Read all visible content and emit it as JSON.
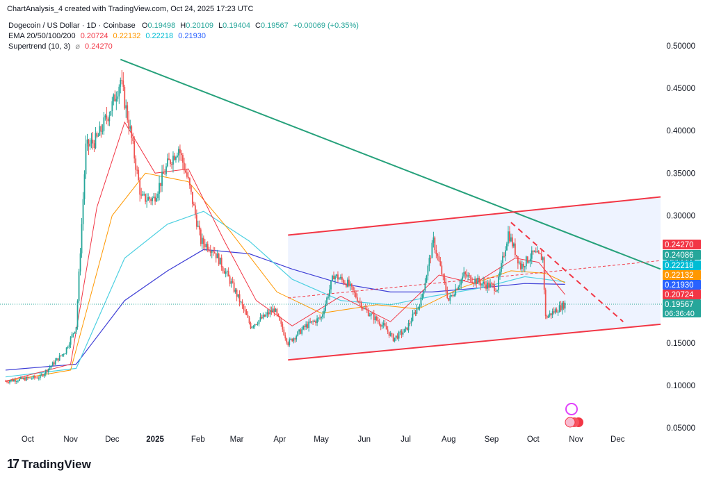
{
  "header": {
    "text": "ChartAnalysis_4 created with TradingView.com, Oct 24, 2025 17:23 UTC"
  },
  "legend": {
    "symbol": "Dogecoin / US Dollar · 1D · Coinbase",
    "ohlc": [
      {
        "label": "O",
        "value": "0.19498"
      },
      {
        "label": "H",
        "value": "0.20109"
      },
      {
        "label": "L",
        "value": "0.19404"
      },
      {
        "label": "C",
        "value": "0.19567"
      }
    ],
    "change": "+0.00069 (+0.35%)",
    "ema_label": "EMA 20/50/100/200",
    "ema_values": [
      "0.20724",
      "0.22132",
      "0.22218",
      "0.21930"
    ],
    "supertrend_label": "Supertrend (10, 3)",
    "supertrend_symbol": "⌀",
    "supertrend_value": "0.24270"
  },
  "footer": {
    "brand": "TradingView"
  },
  "colors": {
    "up": "#26a69a",
    "down": "#ef5350",
    "ema20": "#f23645",
    "ema50": "#ff9800",
    "ema100": "#4dd0e1",
    "ema200": "#3f3fd6",
    "trend": "#26a17b",
    "channel": "#f23645"
  },
  "chart_data": {
    "type": "candlestick",
    "y_ticks": [
      "0.50000",
      "0.45000",
      "0.40000",
      "0.35000",
      "0.30000",
      "0.25000",
      "0.20000",
      "0.15000",
      "0.10000",
      "0.05000"
    ],
    "x_ticks": [
      "Oct",
      "Nov",
      "Dec",
      "2025",
      "Feb",
      "Mar",
      "Apr",
      "May",
      "Jun",
      "Jul",
      "Aug",
      "Sep",
      "Oct",
      "Nov",
      "Dec"
    ],
    "ylim": [
      0.05,
      0.5
    ],
    "price_labels": [
      {
        "value": "0.24270",
        "color": "#f23645"
      },
      {
        "value": "0.24086",
        "color": "#26a69a"
      },
      {
        "value": "0.22218",
        "color": "#00bcd4"
      },
      {
        "value": "0.22132",
        "color": "#ff9800"
      },
      {
        "value": "0.21930",
        "color": "#2962ff"
      },
      {
        "value": "0.20724",
        "color": "#f23645"
      },
      {
        "value": "0.19567",
        "sub": "06:36:40",
        "color": "#26a69a"
      }
    ],
    "descending_trendline": {
      "from": [
        "2024-12-07",
        0.484
      ],
      "to": [
        "2026-01-01",
        0.237
      ]
    },
    "channel_upper": {
      "from": [
        "2025-04-07",
        0.277
      ],
      "to": [
        "2026-01-01",
        0.322
      ]
    },
    "channel_lower": {
      "from": [
        "2025-04-07",
        0.13
      ],
      "to": [
        "2026-01-01",
        0.172
      ]
    },
    "price_path": [
      [
        "2024-09-15",
        0.105
      ],
      [
        "2024-10-10",
        0.11
      ],
      [
        "2024-10-28",
        0.14
      ],
      [
        "2024-11-05",
        0.17
      ],
      [
        "2024-11-12",
        0.38
      ],
      [
        "2024-11-20",
        0.39
      ],
      [
        "2024-12-01",
        0.43
      ],
      [
        "2024-12-07",
        0.46
      ],
      [
        "2024-12-14",
        0.4
      ],
      [
        "2024-12-22",
        0.32
      ],
      [
        "2024-12-31",
        0.32
      ],
      [
        "2025-01-10",
        0.36
      ],
      [
        "2025-01-18",
        0.38
      ],
      [
        "2025-01-25",
        0.34
      ],
      [
        "2025-02-03",
        0.27
      ],
      [
        "2025-02-12",
        0.26
      ],
      [
        "2025-02-22",
        0.23
      ],
      [
        "2025-03-03",
        0.2
      ],
      [
        "2025-03-11",
        0.17
      ],
      [
        "2025-03-20",
        0.18
      ],
      [
        "2025-03-28",
        0.19
      ],
      [
        "2025-04-07",
        0.15
      ],
      [
        "2025-04-20",
        0.17
      ],
      [
        "2025-05-01",
        0.18
      ],
      [
        "2025-05-10",
        0.23
      ],
      [
        "2025-05-20",
        0.22
      ],
      [
        "2025-06-01",
        0.19
      ],
      [
        "2025-06-15",
        0.17
      ],
      [
        "2025-06-22",
        0.155
      ],
      [
        "2025-07-01",
        0.165
      ],
      [
        "2025-07-12",
        0.2
      ],
      [
        "2025-07-21",
        0.27
      ],
      [
        "2025-08-01",
        0.2
      ],
      [
        "2025-08-12",
        0.23
      ],
      [
        "2025-08-25",
        0.22
      ],
      [
        "2025-09-05",
        0.215
      ],
      [
        "2025-09-13",
        0.28
      ],
      [
        "2025-09-22",
        0.24
      ],
      [
        "2025-10-01",
        0.255
      ],
      [
        "2025-10-08",
        0.25
      ],
      [
        "2025-10-10",
        0.18
      ],
      [
        "2025-10-24",
        0.196
      ]
    ],
    "ema20_path": [
      [
        "2024-09-15",
        0.105
      ],
      [
        "2024-11-01",
        0.125
      ],
      [
        "2024-11-20",
        0.31
      ],
      [
        "2024-12-10",
        0.41
      ],
      [
        "2025-01-01",
        0.35
      ],
      [
        "2025-01-25",
        0.355
      ],
      [
        "2025-02-20",
        0.27
      ],
      [
        "2025-03-15",
        0.2
      ],
      [
        "2025-04-10",
        0.17
      ],
      [
        "2025-05-15",
        0.205
      ],
      [
        "2025-06-20",
        0.175
      ],
      [
        "2025-07-25",
        0.23
      ],
      [
        "2025-08-20",
        0.22
      ],
      [
        "2025-09-18",
        0.25
      ],
      [
        "2025-10-05",
        0.245
      ],
      [
        "2025-10-24",
        0.207
      ]
    ],
    "ema50_path": [
      [
        "2024-09-15",
        0.105
      ],
      [
        "2024-11-01",
        0.118
      ],
      [
        "2024-12-01",
        0.3
      ],
      [
        "2024-12-25",
        0.35
      ],
      [
        "2025-01-25",
        0.34
      ],
      [
        "2025-02-25",
        0.28
      ],
      [
        "2025-03-30",
        0.21
      ],
      [
        "2025-05-01",
        0.185
      ],
      [
        "2025-06-10",
        0.195
      ],
      [
        "2025-07-10",
        0.19
      ],
      [
        "2025-08-10",
        0.215
      ],
      [
        "2025-09-15",
        0.235
      ],
      [
        "2025-10-10",
        0.232
      ],
      [
        "2025-10-24",
        0.221
      ]
    ],
    "ema100_path": [
      [
        "2024-09-15",
        0.11
      ],
      [
        "2024-11-05",
        0.12
      ],
      [
        "2024-12-10",
        0.25
      ],
      [
        "2025-01-10",
        0.29
      ],
      [
        "2025-02-05",
        0.305
      ],
      [
        "2025-03-10",
        0.27
      ],
      [
        "2025-04-10",
        0.225
      ],
      [
        "2025-05-15",
        0.2
      ],
      [
        "2025-06-20",
        0.195
      ],
      [
        "2025-07-20",
        0.205
      ],
      [
        "2025-08-25",
        0.215
      ],
      [
        "2025-09-25",
        0.228
      ],
      [
        "2025-10-24",
        0.222
      ]
    ],
    "ema200_path": [
      [
        "2024-09-15",
        0.118
      ],
      [
        "2024-11-05",
        0.125
      ],
      [
        "2024-12-10",
        0.2
      ],
      [
        "2025-01-10",
        0.235
      ],
      [
        "2025-02-05",
        0.26
      ],
      [
        "2025-03-10",
        0.255
      ],
      [
        "2025-04-10",
        0.237
      ],
      [
        "2025-05-15",
        0.22
      ],
      [
        "2025-06-20",
        0.21
      ],
      [
        "2025-07-20",
        0.21
      ],
      [
        "2025-08-25",
        0.215
      ],
      [
        "2025-09-25",
        0.22
      ],
      [
        "2025-10-24",
        0.219
      ]
    ]
  }
}
